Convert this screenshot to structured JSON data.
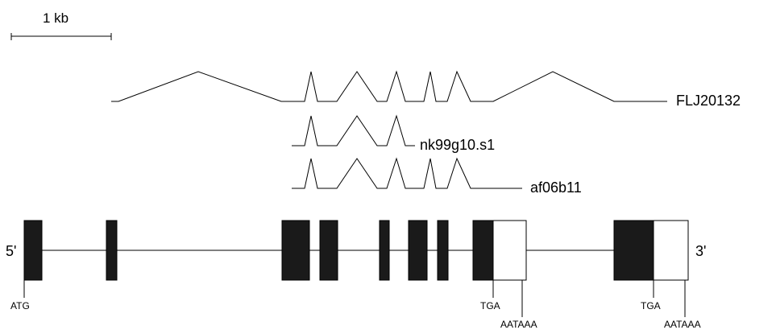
{
  "scale_bar": {
    "label": "1 kb"
  },
  "transcripts": [
    {
      "label": "FLJ20132"
    },
    {
      "label": "nk99g10.s1"
    },
    {
      "label": "af06b11"
    }
  ],
  "gene_model": {
    "five_prime_label": "5'",
    "three_prime_label": "3'",
    "start_codon_label": "ATG",
    "stop_codon_labels": [
      "TGA",
      "TGA"
    ],
    "polya_signal_labels": [
      "AATAAA",
      "AATAAA"
    ]
  },
  "colors": {
    "coding_exon": "#1a1a1a",
    "utr_exon": "#ffffff",
    "line": "#000000"
  }
}
